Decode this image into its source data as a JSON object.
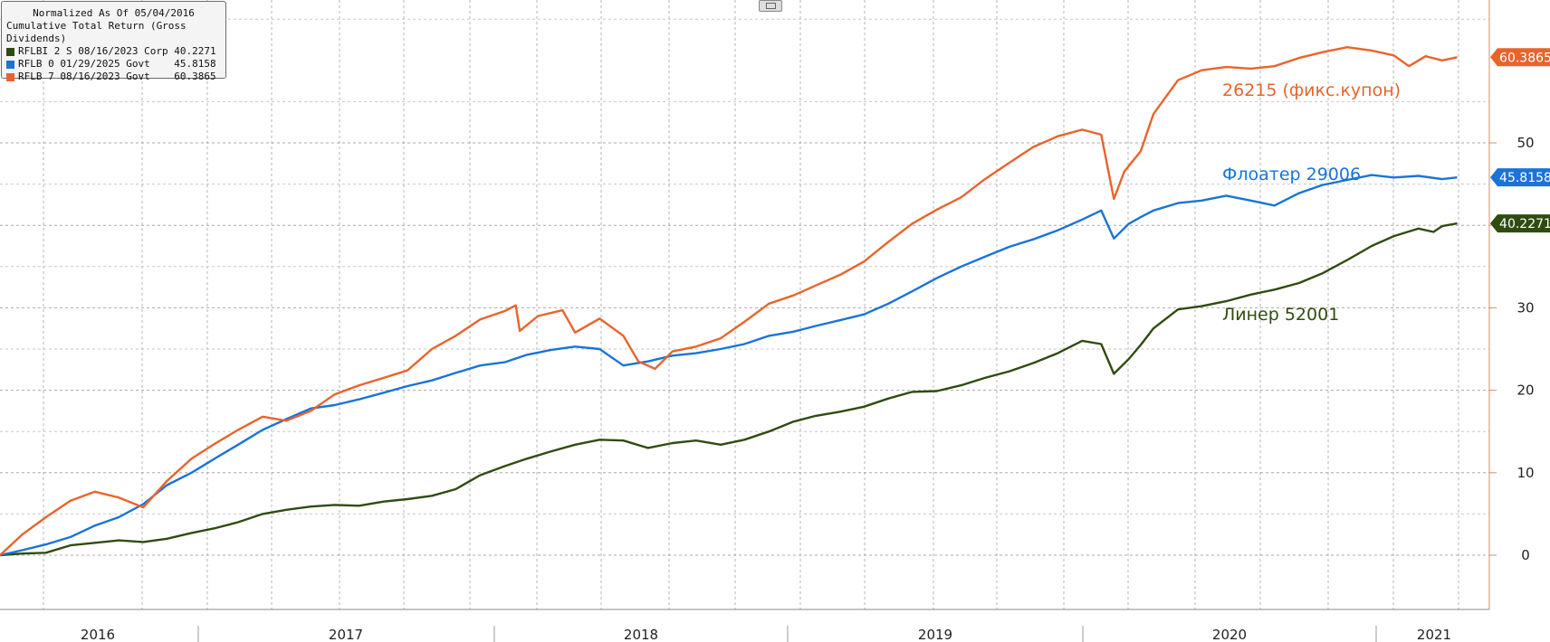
{
  "legend": {
    "title": "Normalized As Of 05/04/2016",
    "subtitle": "Cumulative Total Return (Gross Dividends)"
  },
  "chart_data": {
    "type": "line",
    "x_axis": {
      "labels": [
        "2016",
        "2017",
        "2018",
        "2019",
        "2020",
        "2021"
      ],
      "range": [
        "2016-05-04",
        "2021-06-01"
      ]
    },
    "y_axis": {
      "range": [
        -7,
        67
      ],
      "ticks": [
        0,
        10,
        20,
        30,
        40,
        50
      ],
      "position": "right"
    },
    "grid": true,
    "legend_position": "top-left",
    "series": [
      {
        "name": "RFLBI 2 S 08/16/2023 Corp",
        "last_value": "40.2271",
        "annotation": "Линер 52001",
        "color": "#2f4c10",
        "points": [
          [
            "2016-05-04",
            0
          ],
          [
            "2016-06-01",
            0.2
          ],
          [
            "2016-07-01",
            0.3
          ],
          [
            "2016-08-01",
            1.2
          ],
          [
            "2016-09-01",
            1.5
          ],
          [
            "2016-10-01",
            1.8
          ],
          [
            "2016-11-01",
            1.6
          ],
          [
            "2016-12-01",
            2.0
          ],
          [
            "2017-01-01",
            2.7
          ],
          [
            "2017-02-01",
            3.3
          ],
          [
            "2017-03-01",
            4.0
          ],
          [
            "2017-04-01",
            5.0
          ],
          [
            "2017-05-01",
            5.5
          ],
          [
            "2017-06-01",
            5.9
          ],
          [
            "2017-07-01",
            6.1
          ],
          [
            "2017-08-01",
            6.0
          ],
          [
            "2017-09-01",
            6.5
          ],
          [
            "2017-10-01",
            6.8
          ],
          [
            "2017-11-01",
            7.2
          ],
          [
            "2017-12-01",
            8.0
          ],
          [
            "2018-01-01",
            9.7
          ],
          [
            "2018-02-01",
            10.8
          ],
          [
            "2018-03-01",
            11.7
          ],
          [
            "2018-04-01",
            12.6
          ],
          [
            "2018-05-01",
            13.4
          ],
          [
            "2018-06-01",
            14.0
          ],
          [
            "2018-07-01",
            13.9
          ],
          [
            "2018-08-01",
            13.0
          ],
          [
            "2018-09-01",
            13.6
          ],
          [
            "2018-10-01",
            13.9
          ],
          [
            "2018-11-01",
            13.4
          ],
          [
            "2018-12-01",
            14.0
          ],
          [
            "2019-01-01",
            15.0
          ],
          [
            "2019-02-01",
            16.2
          ],
          [
            "2019-03-01",
            16.9
          ],
          [
            "2019-04-01",
            17.4
          ],
          [
            "2019-05-01",
            18.0
          ],
          [
            "2019-06-01",
            19.0
          ],
          [
            "2019-07-01",
            19.8
          ],
          [
            "2019-08-01",
            19.9
          ],
          [
            "2019-09-01",
            20.6
          ],
          [
            "2019-10-01",
            21.5
          ],
          [
            "2019-11-01",
            22.3
          ],
          [
            "2019-12-01",
            23.3
          ],
          [
            "2020-01-01",
            24.5
          ],
          [
            "2020-02-01",
            26.0
          ],
          [
            "2020-02-25",
            25.6
          ],
          [
            "2020-03-12",
            22.0
          ],
          [
            "2020-03-31",
            23.8
          ],
          [
            "2020-04-15",
            25.5
          ],
          [
            "2020-05-01",
            27.5
          ],
          [
            "2020-06-01",
            29.8
          ],
          [
            "2020-07-01",
            30.2
          ],
          [
            "2020-08-01",
            30.8
          ],
          [
            "2020-09-01",
            31.6
          ],
          [
            "2020-10-01",
            32.2
          ],
          [
            "2020-11-01",
            33.0
          ],
          [
            "2020-12-01",
            34.2
          ],
          [
            "2021-01-01",
            35.8
          ],
          [
            "2021-02-01",
            37.5
          ],
          [
            "2021-03-01",
            38.7
          ],
          [
            "2021-04-01",
            39.6
          ],
          [
            "2021-04-20",
            39.2
          ],
          [
            "2021-05-01",
            39.9
          ],
          [
            "2021-05-20",
            40.2271
          ]
        ]
      },
      {
        "name": "RFLB 0 01/29/2025 Govt",
        "last_value": "45.8158",
        "annotation": "Флоатер 29006",
        "color": "#1a73d9",
        "points": [
          [
            "2016-05-04",
            0
          ],
          [
            "2016-06-01",
            0.6
          ],
          [
            "2016-07-01",
            1.3
          ],
          [
            "2016-08-01",
            2.2
          ],
          [
            "2016-09-01",
            3.6
          ],
          [
            "2016-10-01",
            4.6
          ],
          [
            "2016-11-01",
            6.2
          ],
          [
            "2016-12-01",
            8.5
          ],
          [
            "2017-01-01",
            10.0
          ],
          [
            "2017-02-01",
            11.8
          ],
          [
            "2017-03-01",
            13.4
          ],
          [
            "2017-04-01",
            15.2
          ],
          [
            "2017-05-01",
            16.5
          ],
          [
            "2017-06-01",
            17.8
          ],
          [
            "2017-07-01",
            18.2
          ],
          [
            "2017-08-01",
            18.9
          ],
          [
            "2017-09-01",
            19.7
          ],
          [
            "2017-10-01",
            20.5
          ],
          [
            "2017-11-01",
            21.2
          ],
          [
            "2017-12-01",
            22.1
          ],
          [
            "2018-01-01",
            23.0
          ],
          [
            "2018-02-01",
            23.4
          ],
          [
            "2018-03-01",
            24.3
          ],
          [
            "2018-04-01",
            24.9
          ],
          [
            "2018-05-01",
            25.3
          ],
          [
            "2018-06-01",
            25.0
          ],
          [
            "2018-07-01",
            23.0
          ],
          [
            "2018-08-01",
            23.5
          ],
          [
            "2018-09-01",
            24.2
          ],
          [
            "2018-10-01",
            24.5
          ],
          [
            "2018-11-01",
            25.0
          ],
          [
            "2018-12-01",
            25.6
          ],
          [
            "2019-01-01",
            26.6
          ],
          [
            "2019-02-01",
            27.1
          ],
          [
            "2019-03-01",
            27.8
          ],
          [
            "2019-04-01",
            28.5
          ],
          [
            "2019-05-01",
            29.2
          ],
          [
            "2019-06-01",
            30.5
          ],
          [
            "2019-07-01",
            32.0
          ],
          [
            "2019-08-01",
            33.6
          ],
          [
            "2019-09-01",
            35.0
          ],
          [
            "2019-10-01",
            36.2
          ],
          [
            "2019-11-01",
            37.4
          ],
          [
            "2019-12-01",
            38.3
          ],
          [
            "2020-01-01",
            39.4
          ],
          [
            "2020-02-01",
            40.7
          ],
          [
            "2020-02-25",
            41.8
          ],
          [
            "2020-03-12",
            38.4
          ],
          [
            "2020-03-31",
            40.2
          ],
          [
            "2020-04-15",
            41.0
          ],
          [
            "2020-05-01",
            41.8
          ],
          [
            "2020-06-01",
            42.7
          ],
          [
            "2020-07-01",
            43.0
          ],
          [
            "2020-08-01",
            43.6
          ],
          [
            "2020-09-01",
            43.0
          ],
          [
            "2020-10-01",
            42.4
          ],
          [
            "2020-11-01",
            43.9
          ],
          [
            "2020-12-01",
            44.9
          ],
          [
            "2021-01-01",
            45.5
          ],
          [
            "2021-02-01",
            46.1
          ],
          [
            "2021-03-01",
            45.8
          ],
          [
            "2021-04-01",
            46.0
          ],
          [
            "2021-05-01",
            45.6
          ],
          [
            "2021-05-20",
            45.8158
          ]
        ]
      },
      {
        "name": "RFLB 7 08/16/2023 Govt",
        "last_value": "60.3865",
        "annotation": "26215 (фикс.купон)",
        "color": "#e8642c",
        "points": [
          [
            "2016-05-04",
            0
          ],
          [
            "2016-06-01",
            2.5
          ],
          [
            "2016-07-01",
            4.6
          ],
          [
            "2016-08-01",
            6.6
          ],
          [
            "2016-09-01",
            7.7
          ],
          [
            "2016-10-01",
            7.0
          ],
          [
            "2016-11-01",
            5.8
          ],
          [
            "2016-12-01",
            9.0
          ],
          [
            "2017-01-01",
            11.7
          ],
          [
            "2017-02-01",
            13.6
          ],
          [
            "2017-03-01",
            15.2
          ],
          [
            "2017-04-01",
            16.8
          ],
          [
            "2017-05-01",
            16.3
          ],
          [
            "2017-06-01",
            17.5
          ],
          [
            "2017-07-01",
            19.5
          ],
          [
            "2017-08-01",
            20.6
          ],
          [
            "2017-09-01",
            21.5
          ],
          [
            "2017-10-01",
            22.4
          ],
          [
            "2017-11-01",
            25.0
          ],
          [
            "2017-12-01",
            26.6
          ],
          [
            "2018-01-01",
            28.6
          ],
          [
            "2018-02-01",
            29.6
          ],
          [
            "2018-02-15",
            30.3
          ],
          [
            "2018-02-20",
            27.2
          ],
          [
            "2018-03-15",
            29.0
          ],
          [
            "2018-04-15",
            29.7
          ],
          [
            "2018-05-01",
            27.0
          ],
          [
            "2018-06-01",
            28.7
          ],
          [
            "2018-07-01",
            26.6
          ],
          [
            "2018-07-20",
            23.5
          ],
          [
            "2018-08-10",
            22.6
          ],
          [
            "2018-09-01",
            24.7
          ],
          [
            "2018-10-01",
            25.3
          ],
          [
            "2018-11-01",
            26.3
          ],
          [
            "2018-12-01",
            28.3
          ],
          [
            "2019-01-01",
            30.5
          ],
          [
            "2019-02-01",
            31.5
          ],
          [
            "2019-03-01",
            32.7
          ],
          [
            "2019-04-01",
            34.0
          ],
          [
            "2019-05-01",
            35.6
          ],
          [
            "2019-06-01",
            38.0
          ],
          [
            "2019-07-01",
            40.2
          ],
          [
            "2019-08-01",
            41.9
          ],
          [
            "2019-09-01",
            43.4
          ],
          [
            "2019-10-01",
            45.6
          ],
          [
            "2019-11-01",
            47.6
          ],
          [
            "2019-12-01",
            49.5
          ],
          [
            "2020-01-01",
            50.8
          ],
          [
            "2020-02-01",
            51.6
          ],
          [
            "2020-02-25",
            51.0
          ],
          [
            "2020-03-12",
            43.2
          ],
          [
            "2020-03-25",
            46.5
          ],
          [
            "2020-04-15",
            49.0
          ],
          [
            "2020-05-01",
            53.5
          ],
          [
            "2020-06-01",
            57.6
          ],
          [
            "2020-07-01",
            58.8
          ],
          [
            "2020-08-01",
            59.2
          ],
          [
            "2020-09-01",
            59.0
          ],
          [
            "2020-10-01",
            59.3
          ],
          [
            "2020-11-01",
            60.3
          ],
          [
            "2020-12-01",
            61.0
          ],
          [
            "2021-01-01",
            61.6
          ],
          [
            "2021-02-01",
            61.2
          ],
          [
            "2021-03-01",
            60.6
          ],
          [
            "2021-03-20",
            59.3
          ],
          [
            "2021-04-10",
            60.5
          ],
          [
            "2021-05-01",
            60.0
          ],
          [
            "2021-05-20",
            60.3865
          ]
        ]
      }
    ]
  }
}
